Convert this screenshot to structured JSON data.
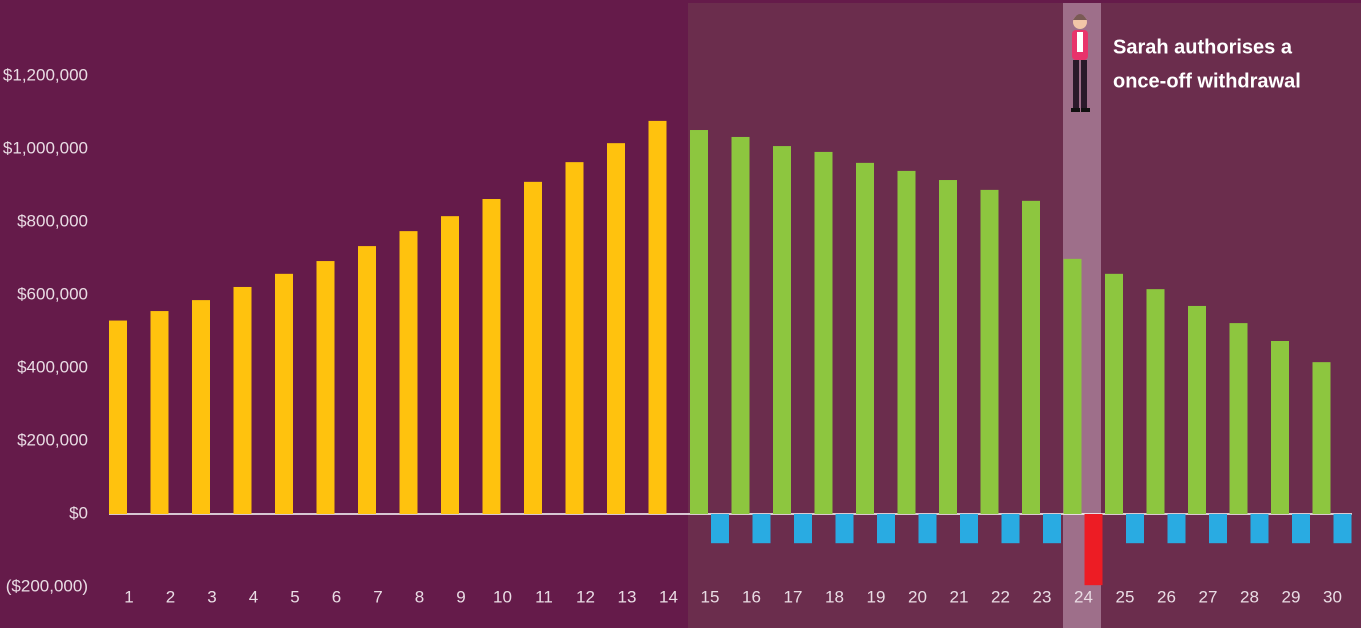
{
  "chart_data": {
    "type": "bar",
    "categories": [
      "1",
      "2",
      "3",
      "4",
      "5",
      "6",
      "7",
      "8",
      "9",
      "10",
      "11",
      "12",
      "13",
      "14",
      "15",
      "16",
      "17",
      "18",
      "19",
      "20",
      "21",
      "22",
      "23",
      "24",
      "25",
      "26",
      "27",
      "28",
      "29",
      "30"
    ],
    "series": [
      {
        "color": "#ffc20e",
        "values": [
          530000,
          556000,
          586000,
          622000,
          658000,
          693000,
          734000,
          775000,
          816000,
          863000,
          910000,
          964000,
          1016000,
          1077000,
          null,
          null,
          null,
          null,
          null,
          null,
          null,
          null,
          null,
          null,
          null,
          null,
          null,
          null,
          null,
          null
        ]
      },
      {
        "color": "#8dc63f",
        "values": [
          null,
          null,
          null,
          null,
          null,
          null,
          null,
          null,
          null,
          null,
          null,
          null,
          null,
          null,
          1052000,
          1033000,
          1008000,
          992000,
          962000,
          940000,
          915000,
          888000,
          858000,
          699000,
          658000,
          616000,
          570000,
          523000,
          474000,
          416000
        ]
      },
      {
        "color": "#29abe2",
        "values": [
          null,
          null,
          null,
          null,
          null,
          null,
          null,
          null,
          null,
          null,
          null,
          null,
          null,
          null,
          -80000,
          -80000,
          -80000,
          -80000,
          -80000,
          -80000,
          -80000,
          -80000,
          -80000,
          null,
          -80000,
          -80000,
          -80000,
          -80000,
          -80000,
          -80000
        ]
      },
      {
        "color": "#ed1c24",
        "values": [
          null,
          null,
          null,
          null,
          null,
          null,
          null,
          null,
          null,
          null,
          null,
          null,
          null,
          null,
          null,
          null,
          null,
          null,
          null,
          null,
          null,
          null,
          null,
          -195000,
          null,
          null,
          null,
          null,
          null,
          null
        ]
      }
    ],
    "ylim": [
      -200000,
      1400000
    ],
    "yticks": [
      {
        "value": -200000,
        "label": "($200,000)"
      },
      {
        "value": 0,
        "label": "$0"
      },
      {
        "value": 200000,
        "label": "$200,000"
      },
      {
        "value": 400000,
        "label": "$400,000"
      },
      {
        "value": 600000,
        "label": "$600,000"
      },
      {
        "value": 800000,
        "label": "$800,000"
      },
      {
        "value": 1000000,
        "label": "$1,000,000"
      },
      {
        "value": 1200000,
        "label": "$1,200,000"
      }
    ],
    "annotation": [
      "Sarah authorises a",
      "once-off withdrawal"
    ]
  }
}
